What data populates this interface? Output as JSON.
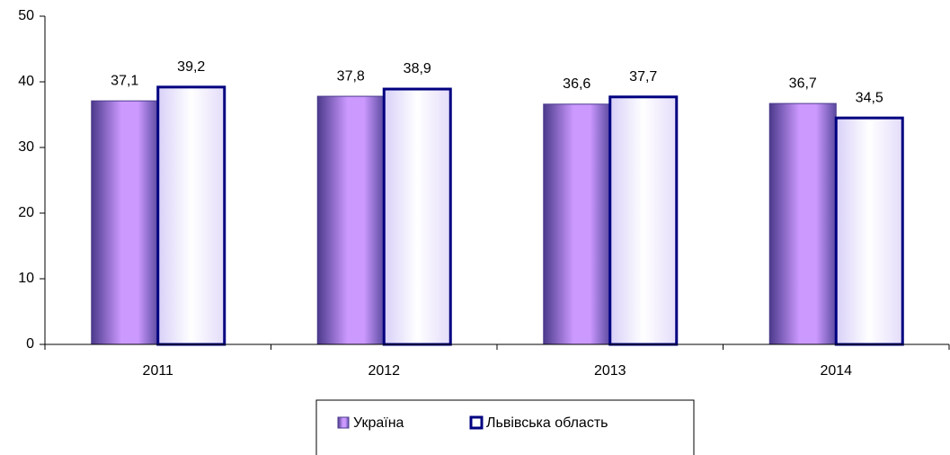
{
  "chart_data": {
    "type": "bar",
    "categories": [
      "2011",
      "2012",
      "2013",
      "2014"
    ],
    "series": [
      {
        "name": "Україна",
        "color": "#cc99ff",
        "values": [
          37.1,
          37.8,
          36.6,
          36.7
        ],
        "value_labels": [
          "37,1",
          "37,8",
          "36,6",
          "36,7"
        ]
      },
      {
        "name": "Львівська область",
        "color": "#f4f0ff",
        "edgecolor": "#000080",
        "values": [
          39.2,
          38.9,
          37.7,
          34.5
        ],
        "value_labels": [
          "39,2",
          "38,9",
          "37,7",
          "34,5"
        ]
      }
    ],
    "ylim": [
      0,
      50
    ],
    "yticks": [
      0,
      10,
      20,
      30,
      40,
      50
    ],
    "grid": false,
    "legend": "bottom"
  }
}
